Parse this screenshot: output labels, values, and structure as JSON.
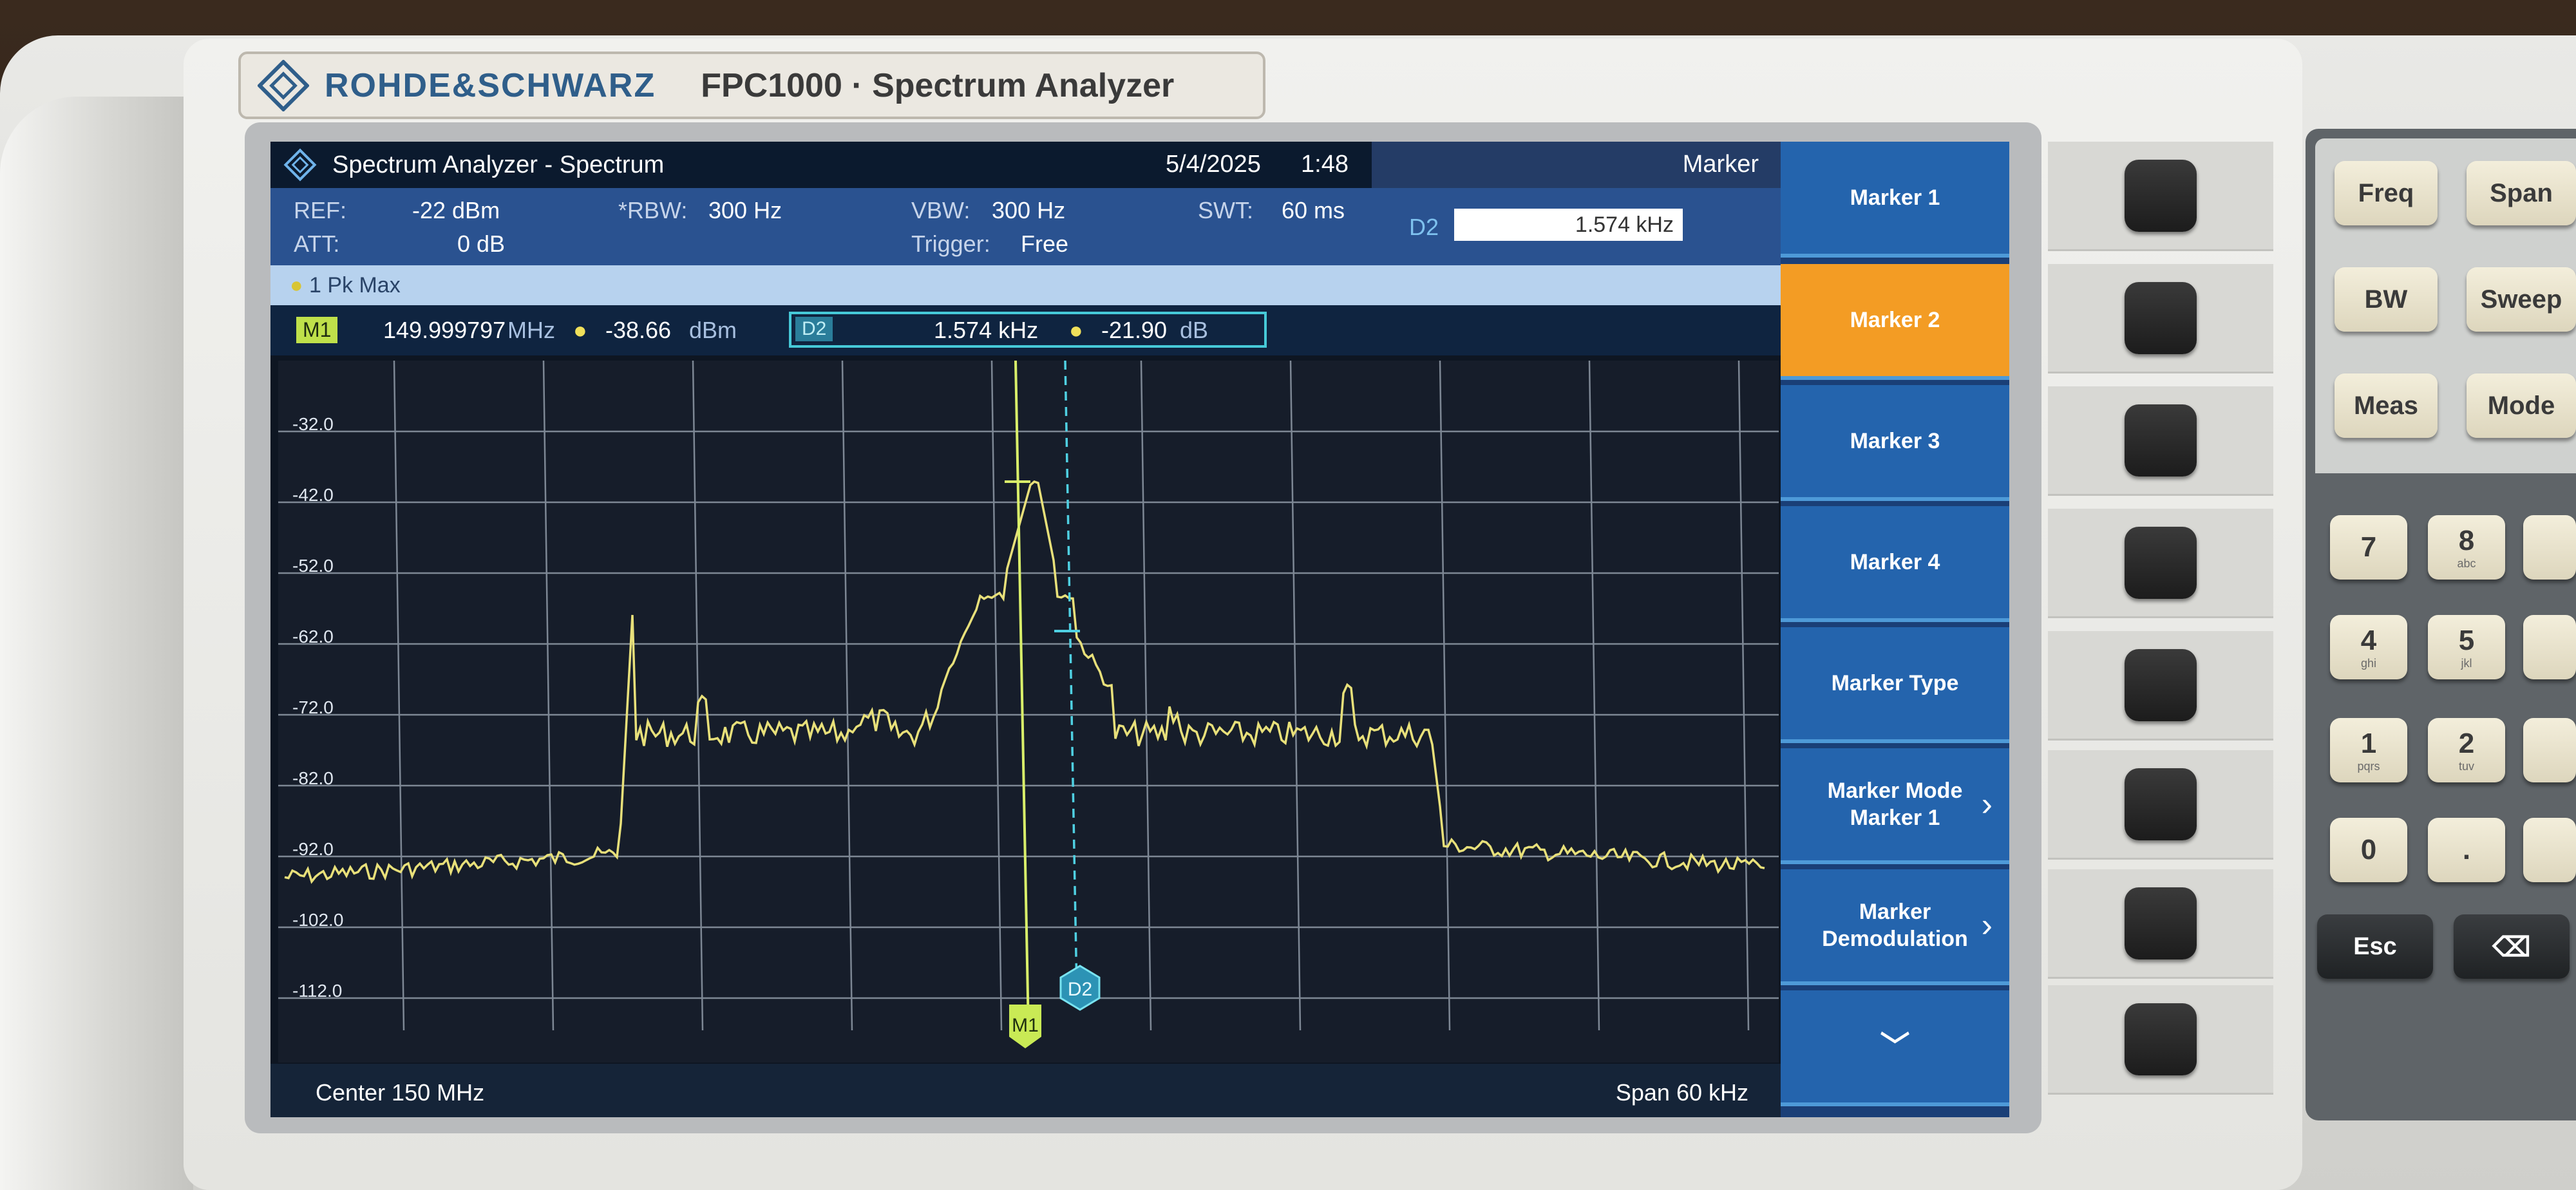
{
  "brand": {
    "name": "ROHDE&SCHWARZ",
    "model": "FPC1000 · Spectrum Analyzer"
  },
  "titlebar": {
    "title": "Spectrum Analyzer - Spectrum",
    "date": "5/4/2025",
    "time": "1:48"
  },
  "marker_panel": {
    "header": "Marker",
    "input_label": "D2",
    "input_value": "1.574 kHz"
  },
  "params": {
    "ref_label": "REF:",
    "ref_value": "-22 dBm",
    "att_label": "ATT:",
    "att_value": "0 dB",
    "rbw_label": "*RBW:",
    "rbw_value": "300 Hz",
    "vbw_label": "VBW:",
    "vbw_value": "300 Hz",
    "trigger_label": "Trigger:",
    "trigger_value": "Free",
    "swt_label": "SWT:",
    "swt_value": "60 ms"
  },
  "trace": {
    "label": "1 Pk  Max"
  },
  "marker_table": {
    "m1_tag": "M1",
    "m1_freq": "149.999797",
    "m1_freq_unit": "MHz",
    "m1_level": "-38.66",
    "m1_level_unit": "dBm",
    "d2_tag": "D2",
    "d2_freq": "1.574 kHz",
    "d2_level": "-21.90",
    "d2_level_unit": "dB"
  },
  "plot": {
    "y_ticks": [
      "-32.0",
      "-42.0",
      "-52.0",
      "-62.0",
      "-72.0",
      "-82.0",
      "-92.0",
      "-102.0",
      "-112.0"
    ],
    "marker_m1": "M1",
    "marker_d2": "D2",
    "trace_color": "#e8e07a"
  },
  "footer": {
    "center": "Center 150 MHz",
    "span": "Span 60 kHz"
  },
  "softkeys": [
    {
      "label": "Marker 1"
    },
    {
      "label": "Marker 2",
      "active": true
    },
    {
      "label": "Marker 3"
    },
    {
      "label": "Marker 4"
    },
    {
      "label": "Marker Type"
    },
    {
      "label": "Marker Mode Marker 1",
      "chevron": "›"
    },
    {
      "label": "Marker Demodulation",
      "chevron": "›"
    },
    {
      "label": "﹀"
    }
  ],
  "keys": {
    "freq": "Freq",
    "span": "Span",
    "bw": "BW",
    "sweep": "Sweep",
    "meas": "Meas",
    "mode": "Mode",
    "k7": "7",
    "k8": "8",
    "k8_sub": "abc",
    "k4": "4",
    "k4_sub": "ghi",
    "k5": "5",
    "k5_sub": "jkl",
    "k1": "1",
    "k1_sub": "pqrs",
    "k2": "2",
    "k2_sub": "tuv",
    "k0": "0",
    "kdot": ".",
    "esc": "Esc",
    "bksp": "⌫"
  }
}
